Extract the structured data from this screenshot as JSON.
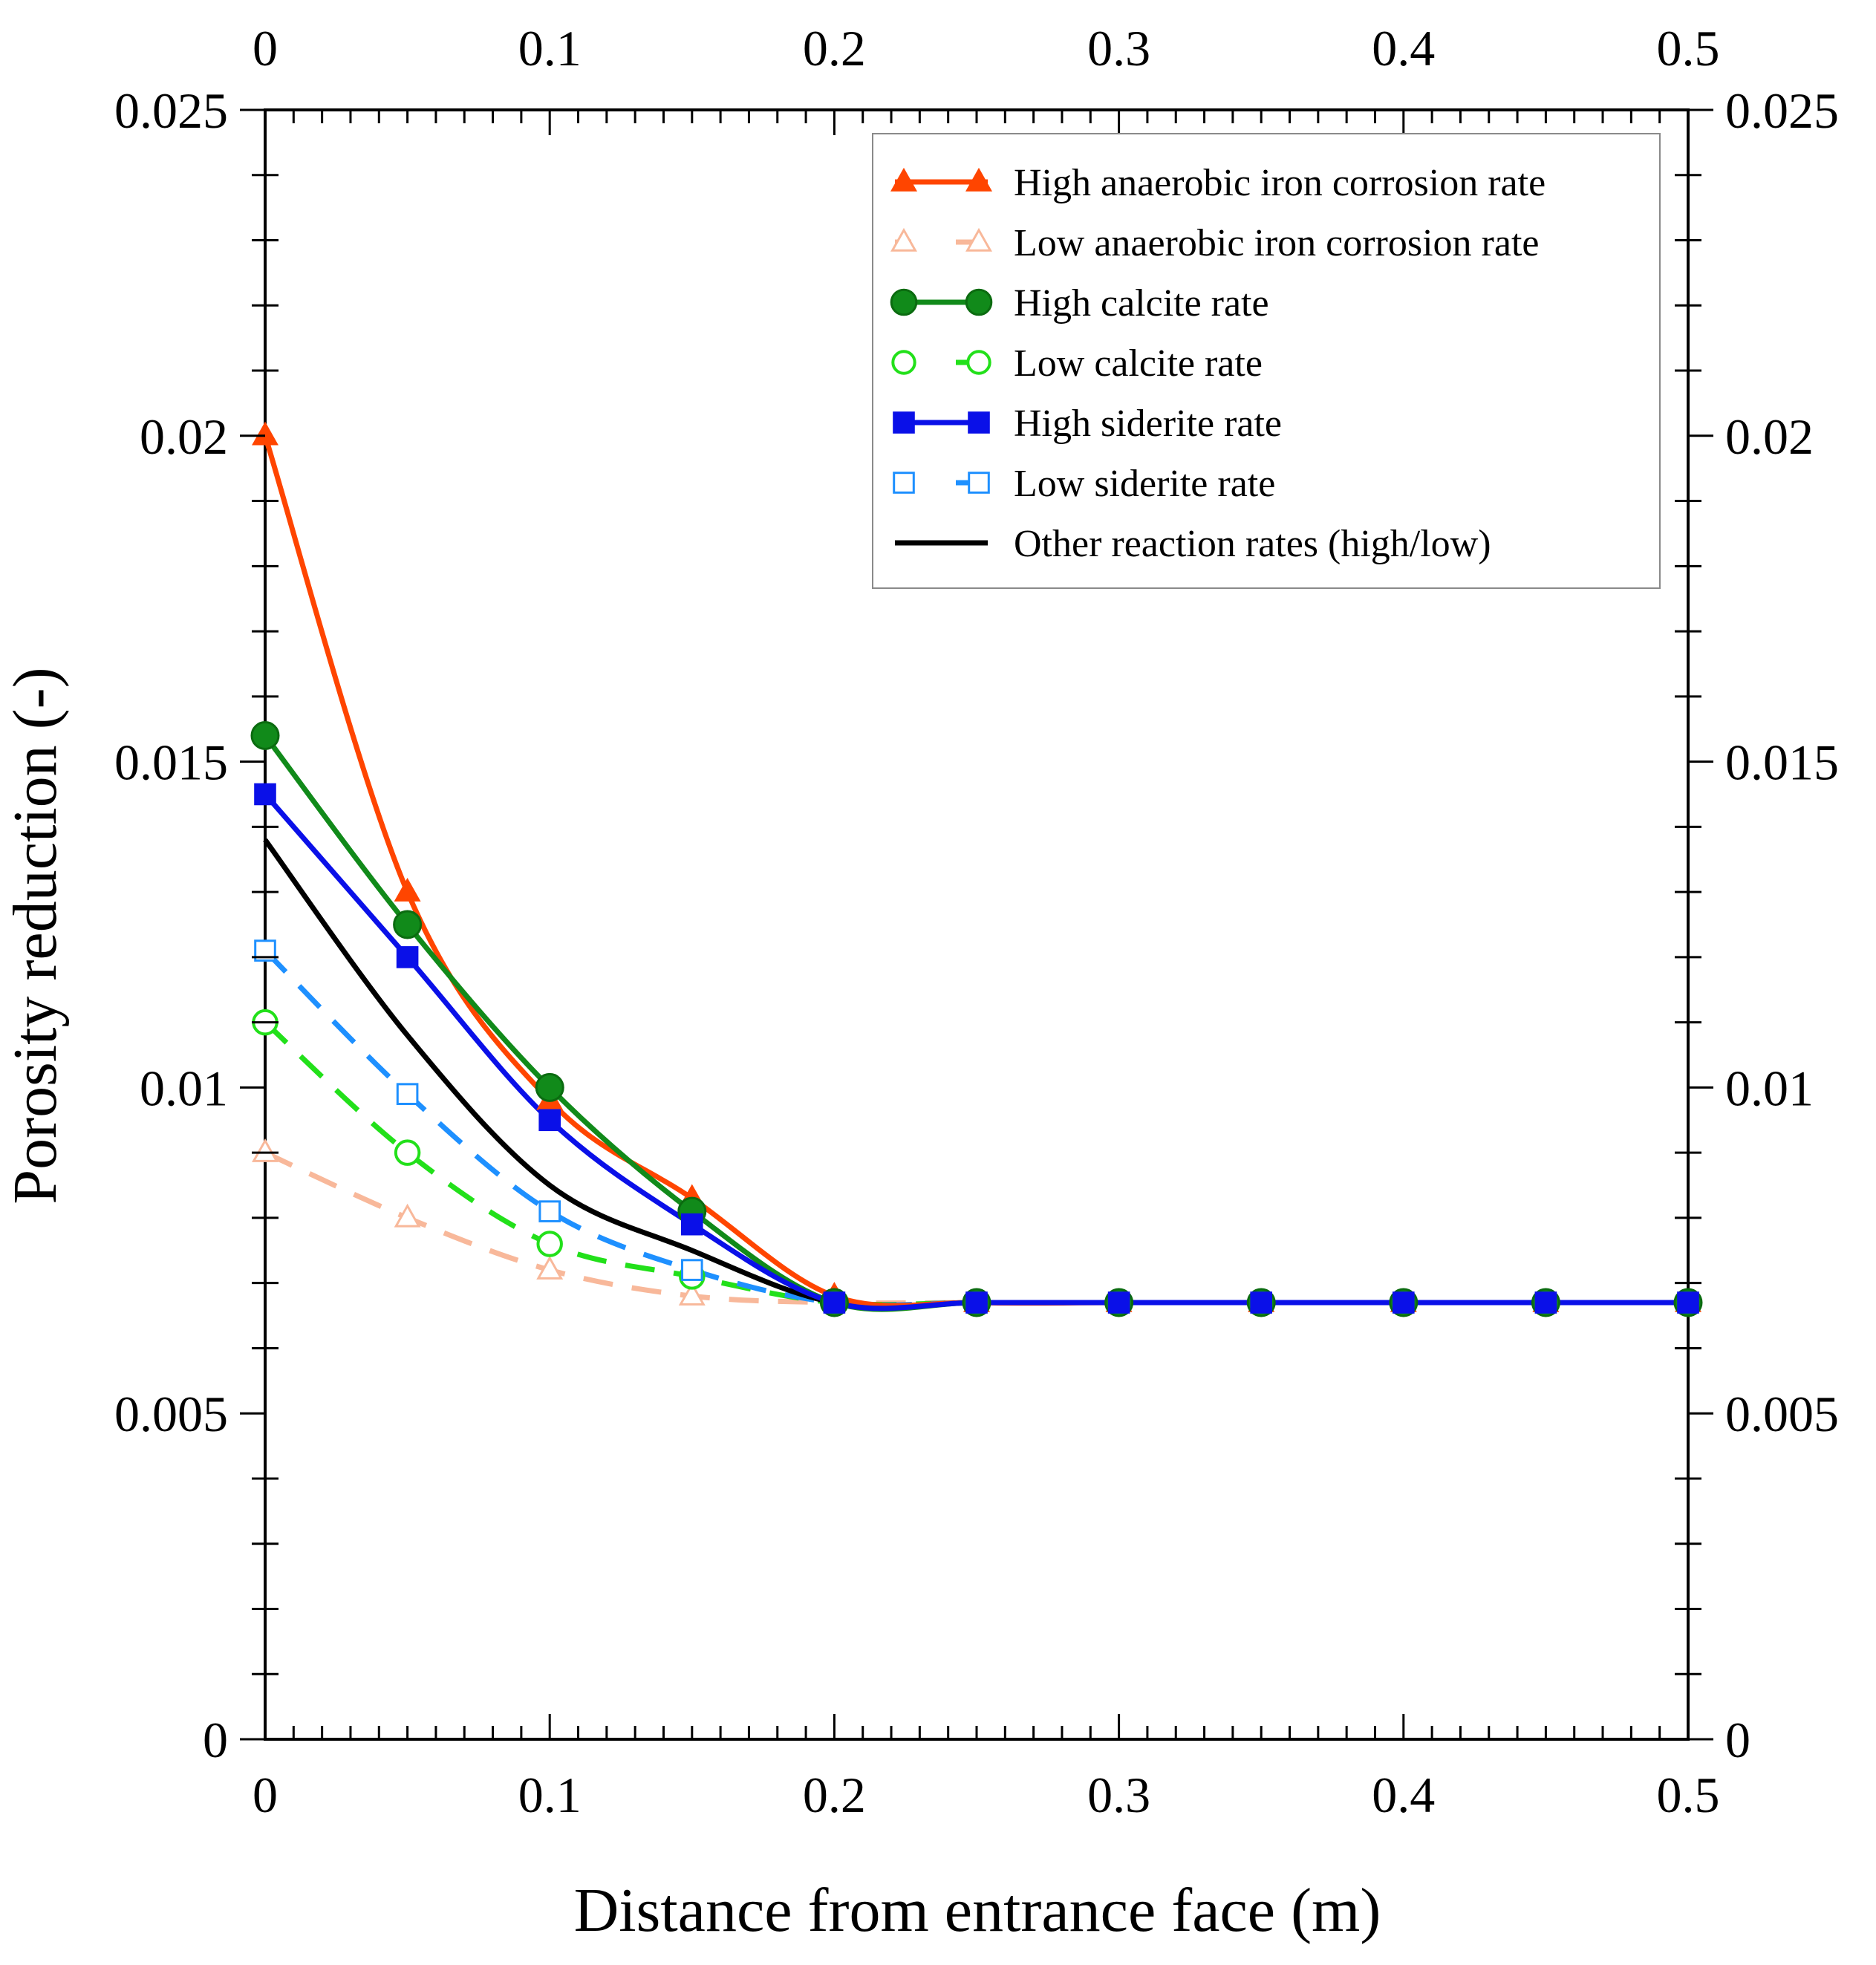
{
  "chart_data": {
    "type": "line",
    "title": "",
    "xlabel": "Distance from entrance face (m)",
    "ylabel": "Porosity reduction (-)",
    "xlim": [
      0,
      0.5
    ],
    "ylim": [
      0,
      0.025
    ],
    "x_ticks": [
      "0",
      "0.1",
      "0.2",
      "0.3",
      "0.4",
      "0.5"
    ],
    "y_ticks": [
      "0",
      "0.005",
      "0.01",
      "0.015",
      "0.02",
      "0.025"
    ],
    "legend_position": "top-right",
    "x": [
      0,
      0.05,
      0.1,
      0.15,
      0.2,
      0.25,
      0.3,
      0.35,
      0.4,
      0.45,
      0.5
    ],
    "series": [
      {
        "name": "High anaerobic iron corrosion rate",
        "color": "#ff4500",
        "dash": "solid",
        "marker": "triangle-filled",
        "values": [
          0.02,
          0.013,
          0.0098,
          0.0083,
          0.0068,
          0.0067,
          0.0067,
          0.0067,
          0.0067,
          0.0067,
          0.0067
        ]
      },
      {
        "name": "Low anaerobic iron corrosion rate",
        "color": "#f8b89a",
        "dash": "dashed",
        "marker": "triangle-open",
        "values": [
          0.009,
          0.008,
          0.0072,
          0.0068,
          0.0067,
          0.0067,
          0.0067,
          0.0067,
          0.0067,
          0.0067,
          0.0067
        ]
      },
      {
        "name": "High calcite rate",
        "color": "#118a1a",
        "dash": "solid",
        "marker": "circle-filled",
        "values": [
          0.0154,
          0.0125,
          0.01,
          0.0081,
          0.0067,
          0.0067,
          0.0067,
          0.0067,
          0.0067,
          0.0067,
          0.0067
        ]
      },
      {
        "name": "Low calcite rate",
        "color": "#22e01a",
        "dash": "dashed",
        "marker": "circle-open",
        "values": [
          0.011,
          0.009,
          0.0076,
          0.0071,
          0.0067,
          0.0067,
          0.0067,
          0.0067,
          0.0067,
          0.0067,
          0.0067
        ]
      },
      {
        "name": "High siderite rate",
        "color": "#0a10e8",
        "dash": "solid",
        "marker": "square-filled",
        "values": [
          0.0145,
          0.012,
          0.0095,
          0.0079,
          0.0067,
          0.0067,
          0.0067,
          0.0067,
          0.0067,
          0.0067,
          0.0067
        ]
      },
      {
        "name": "Low siderite rate",
        "color": "#1e90ff",
        "dash": "dashed",
        "marker": "square-open",
        "values": [
          0.0121,
          0.0099,
          0.0081,
          0.0072,
          0.0067,
          0.0067,
          0.0067,
          0.0067,
          0.0067,
          0.0067,
          0.0067
        ]
      },
      {
        "name": "Other reaction rates (high/low)",
        "color": "#000000",
        "dash": "solid",
        "marker": "none",
        "values": [
          0.0138,
          0.0108,
          0.0085,
          0.0075,
          0.0067,
          0.0067,
          0.0067,
          0.0067,
          0.0067,
          0.0067,
          0.0067
        ]
      }
    ]
  }
}
